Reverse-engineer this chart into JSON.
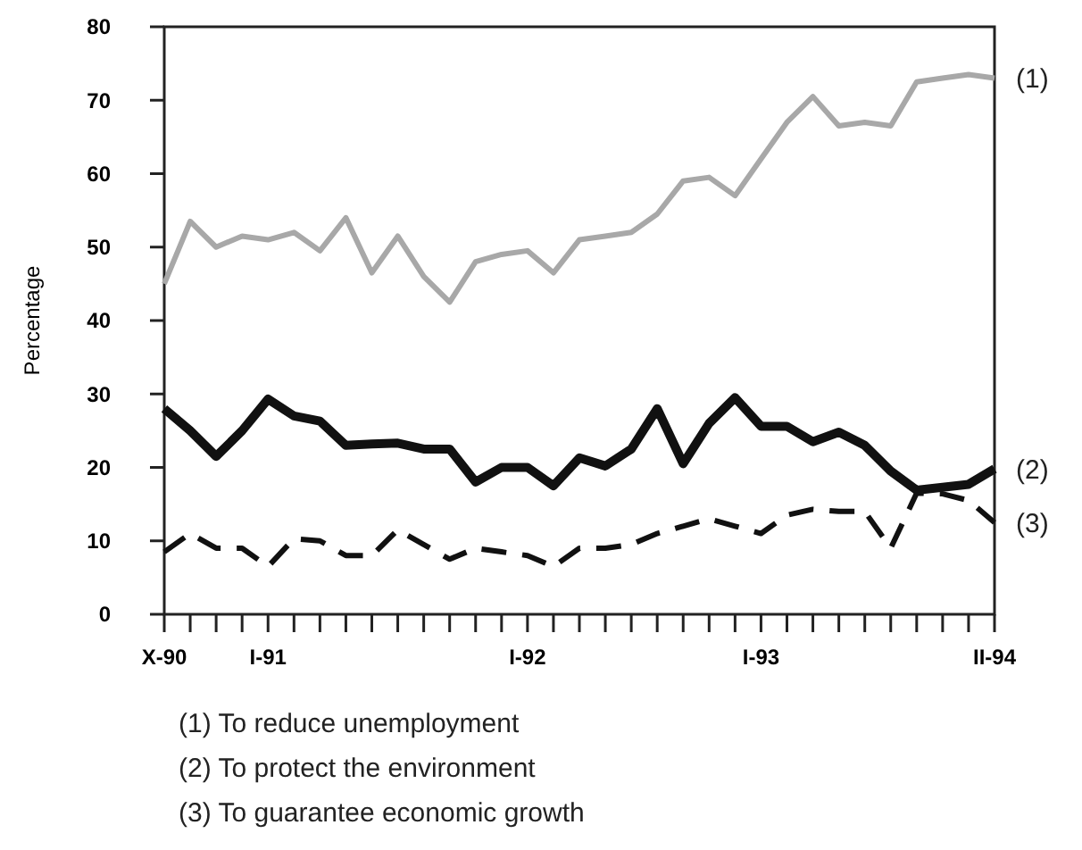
{
  "chart_data": {
    "type": "line",
    "ylabel": "Percentage",
    "categories": [
      "X-90",
      null,
      null,
      null,
      "I-91",
      null,
      null,
      null,
      null,
      null,
      null,
      null,
      null,
      null,
      "I-92",
      null,
      null,
      null,
      null,
      null,
      null,
      null,
      null,
      "I-93",
      null,
      null,
      null,
      null,
      null,
      null,
      null,
      null,
      "II-94"
    ],
    "ylim": [
      0,
      80
    ],
    "yticks": [
      0,
      10,
      20,
      30,
      40,
      50,
      60,
      70,
      80
    ],
    "marker": "none",
    "series": [
      {
        "name": "(1)",
        "color": "#a8a8a8",
        "line_style": "solid",
        "values": [
          45,
          53.5,
          50,
          51.5,
          51,
          52,
          49.5,
          54,
          46.5,
          51.5,
          46,
          42.5,
          48,
          49,
          49.5,
          46.5,
          51,
          51.5,
          52,
          54.5,
          59,
          59.5,
          57,
          62,
          67,
          70.5,
          66.5,
          67,
          66.5,
          72.5,
          73,
          73.5,
          73
        ]
      },
      {
        "name": "(2)",
        "color": "#111111",
        "line_style": "solid",
        "values": [
          28,
          25,
          21.5,
          25,
          29.3,
          27,
          26.3,
          23,
          23.2,
          23.3,
          22.5,
          22.5,
          18,
          20,
          20,
          17.5,
          21.3,
          20.2,
          22.5,
          28,
          20.5,
          26,
          29.5,
          25.6,
          25.6,
          23.5,
          24.8,
          23,
          19.5,
          16.9,
          17.3,
          17.7,
          19.8
        ]
      },
      {
        "name": "(3)",
        "color": "#111111",
        "line_style": "dashed",
        "values": [
          8.5,
          11,
          9,
          9,
          6.5,
          10.3,
          10,
          8,
          8,
          11.5,
          9.5,
          7.5,
          9,
          8.5,
          8,
          6.5,
          9,
          9,
          9.5,
          11,
          12,
          13,
          12,
          11,
          13.5,
          14.3,
          14,
          14,
          9,
          16.5,
          16.4,
          15.5,
          12.5
        ]
      }
    ],
    "annotations": [
      "(1) To reduce unemployment",
      "(2) To protect the environment",
      "(3) To guarantee economic growth"
    ]
  }
}
